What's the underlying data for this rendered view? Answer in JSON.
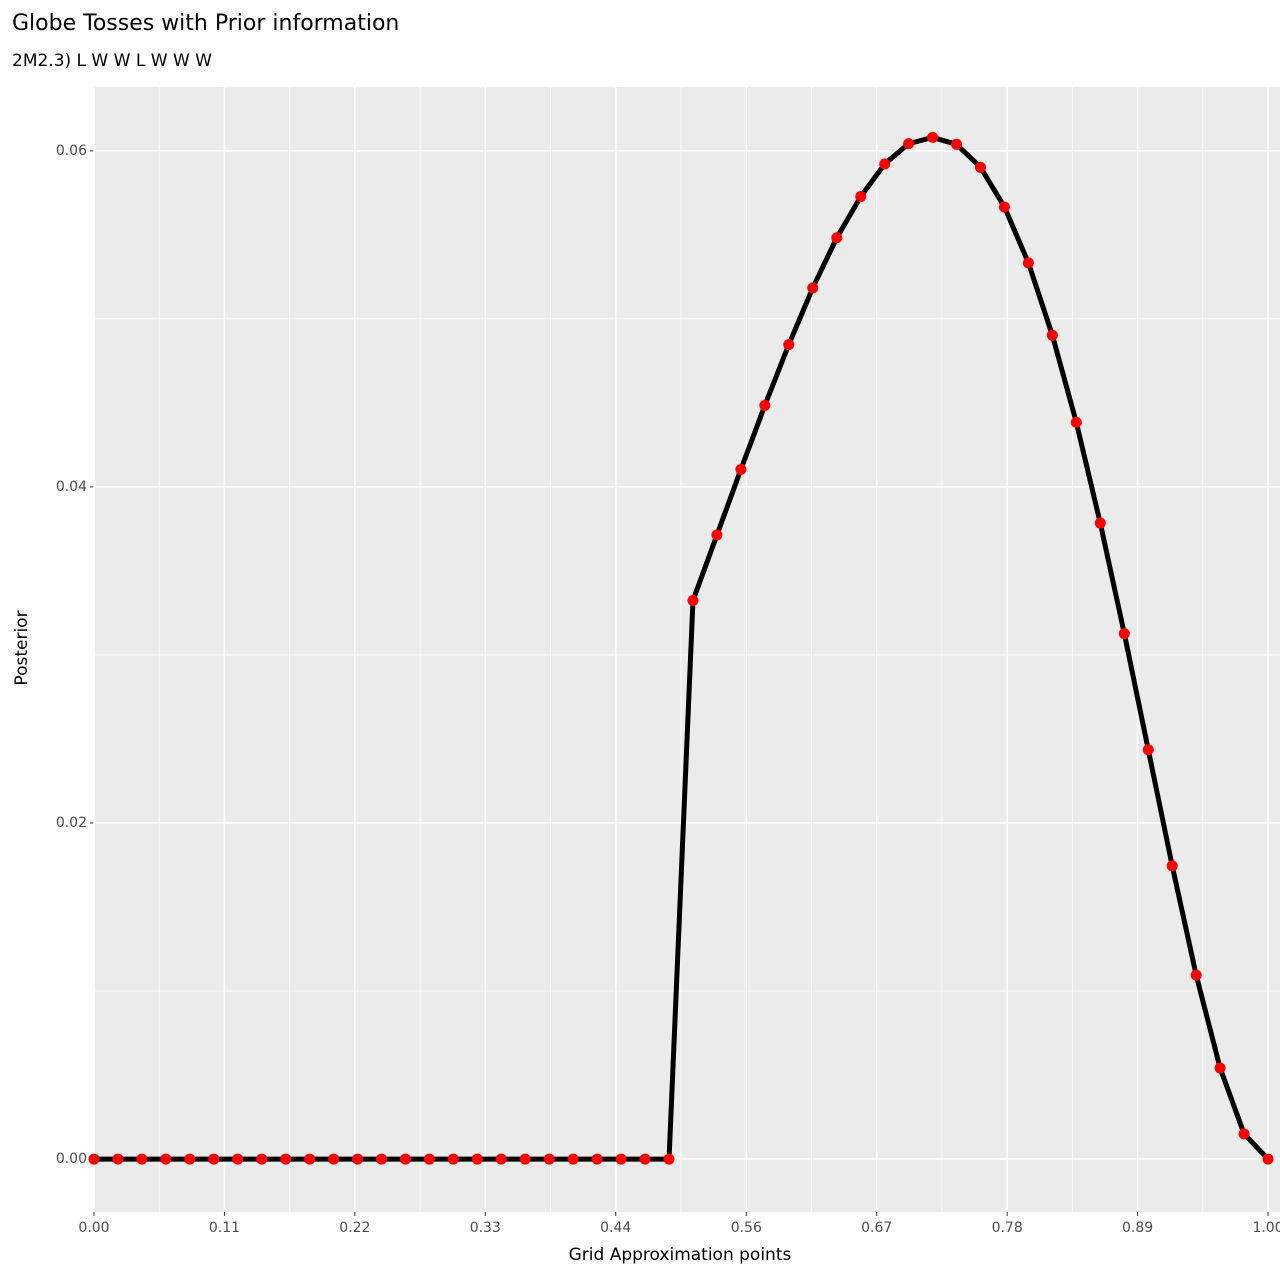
{
  "chart_data": {
    "type": "line",
    "title": "Globe Tosses with Prior information",
    "subtitle": "2M2.3) L W W L W W W",
    "xlabel": "Grid Approximation points",
    "ylabel": "Posterior",
    "x": [
      0,
      0.0204,
      0.0408,
      0.0612,
      0.0816,
      0.102,
      0.1224,
      0.1429,
      0.1633,
      0.1837,
      0.2041,
      0.2245,
      0.2449,
      0.2653,
      0.2857,
      0.3061,
      0.3265,
      0.3469,
      0.3673,
      0.3878,
      0.4082,
      0.4286,
      0.449,
      0.4694,
      0.4898,
      0.5102,
      0.5306,
      0.551,
      0.5714,
      0.5918,
      0.6122,
      0.6327,
      0.6531,
      0.6735,
      0.6939,
      0.7143,
      0.7347,
      0.7551,
      0.7755,
      0.7959,
      0.8163,
      0.8367,
      0.8571,
      0.8776,
      0.898,
      0.9184,
      0.9388,
      0.9592,
      0.9796,
      1
    ],
    "values": [
      0,
      0,
      0,
      0,
      0,
      0,
      0,
      0,
      0,
      0,
      0,
      0,
      0,
      0,
      0,
      0,
      0,
      0,
      0,
      0,
      0,
      0,
      0,
      0,
      0,
      0.03324,
      0.03714,
      0.04104,
      0.04485,
      0.04847,
      0.05184,
      0.05483,
      0.05728,
      0.05922,
      0.06043,
      0.0608,
      0.06039,
      0.05902,
      0.05666,
      0.05333,
      0.04903,
      0.04384,
      0.03785,
      0.03127,
      0.02436,
      0.01745,
      0.01095,
      0.00542,
      0.0015,
      0
    ],
    "line_color": "#000000",
    "point_color": "#ff0000",
    "xlim": [
      0,
      1.0102
    ],
    "ylim": [
      -0.00315,
      0.0638
    ],
    "xticks": [
      {
        "value": 0,
        "label": "0.00"
      },
      {
        "value": 0.1111,
        "label": "0.11"
      },
      {
        "value": 0.2222,
        "label": "0.22"
      },
      {
        "value": 0.3333,
        "label": "0.33"
      },
      {
        "value": 0.4444,
        "label": "0.44"
      },
      {
        "value": 0.5556,
        "label": "0.56"
      },
      {
        "value": 0.6667,
        "label": "0.67"
      },
      {
        "value": 0.7778,
        "label": "0.78"
      },
      {
        "value": 0.8889,
        "label": "0.89"
      },
      {
        "value": 1,
        "label": "1.00"
      }
    ],
    "yticks": [
      {
        "value": 0,
        "label": "0.00"
      },
      0.02,
      0.04,
      0.06
    ],
    "xminor": [
      0.0556,
      0.1667,
      0.2778,
      0.3889,
      0.5,
      0.6111,
      0.7222,
      0.8333,
      0.9444
    ],
    "yminor": [
      0.01,
      0.03,
      0.05
    ],
    "grid": true
  }
}
